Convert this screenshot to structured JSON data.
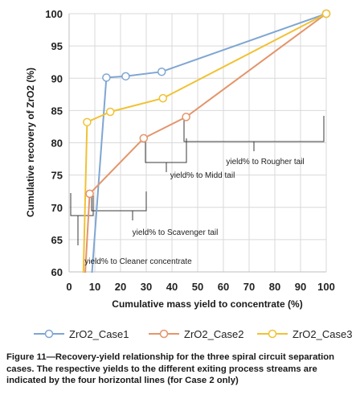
{
  "chart_data": {
    "type": "line",
    "xlabel": "Cumulative mass yield to concentrate (%)",
    "ylabel": "Cumulative recovery of ZrO2 (%)",
    "xlim": [
      0,
      100
    ],
    "ylim": [
      60,
      100
    ],
    "x_ticks": [
      "0",
      "10",
      "20",
      "30",
      "40",
      "50",
      "60",
      "70",
      "80",
      "90",
      "100"
    ],
    "y_ticks": [
      "60",
      "65",
      "70",
      "75",
      "80",
      "85",
      "90",
      "95",
      "100"
    ],
    "grid": true,
    "legend_position": "bottom",
    "series": [
      {
        "name": "ZrO2_Case1",
        "color": "#7fa6d2",
        "points": [
          [
            8.0,
            55.0
          ],
          [
            14.5,
            90.1
          ],
          [
            22.0,
            90.3
          ],
          [
            36.0,
            91.0
          ],
          [
            100,
            100
          ]
        ],
        "markers": [
          [
            14.5,
            90.1
          ],
          [
            22.0,
            90.3
          ],
          [
            36.0,
            91.0
          ],
          [
            100,
            100
          ]
        ]
      },
      {
        "name": "ZrO2_Case2",
        "color": "#e3956b",
        "points": [
          [
            6.0,
            58.0
          ],
          [
            8.0,
            72.1
          ],
          [
            29.0,
            80.7
          ],
          [
            45.5,
            84.0
          ],
          [
            100,
            100
          ]
        ],
        "markers": [
          [
            8.0,
            72.1
          ],
          [
            29.0,
            80.7
          ],
          [
            45.5,
            84.0
          ],
          [
            100,
            100
          ]
        ]
      },
      {
        "name": "ZrO2_Case3",
        "color": "#f0c233",
        "points": [
          [
            5.5,
            59.0
          ],
          [
            7.0,
            83.2
          ],
          [
            16.0,
            84.8
          ],
          [
            36.5,
            86.9
          ],
          [
            100,
            100
          ]
        ],
        "markers": [
          [
            7.0,
            83.2
          ],
          [
            16.0,
            84.8
          ],
          [
            36.5,
            86.9
          ],
          [
            100,
            100
          ]
        ]
      }
    ],
    "annotations": [
      "yield% to Rougher tail",
      "yield% to Midd tail",
      "yield% to Scavenger tail",
      "yield% to Cleaner concentrate"
    ]
  },
  "caption": "Figure 11—Recovery-yield relationship for the three spiral circuit separation cases. The respective yields to the different exiting process streams are indicated by the four horizontal lines (for Case 2 only)"
}
